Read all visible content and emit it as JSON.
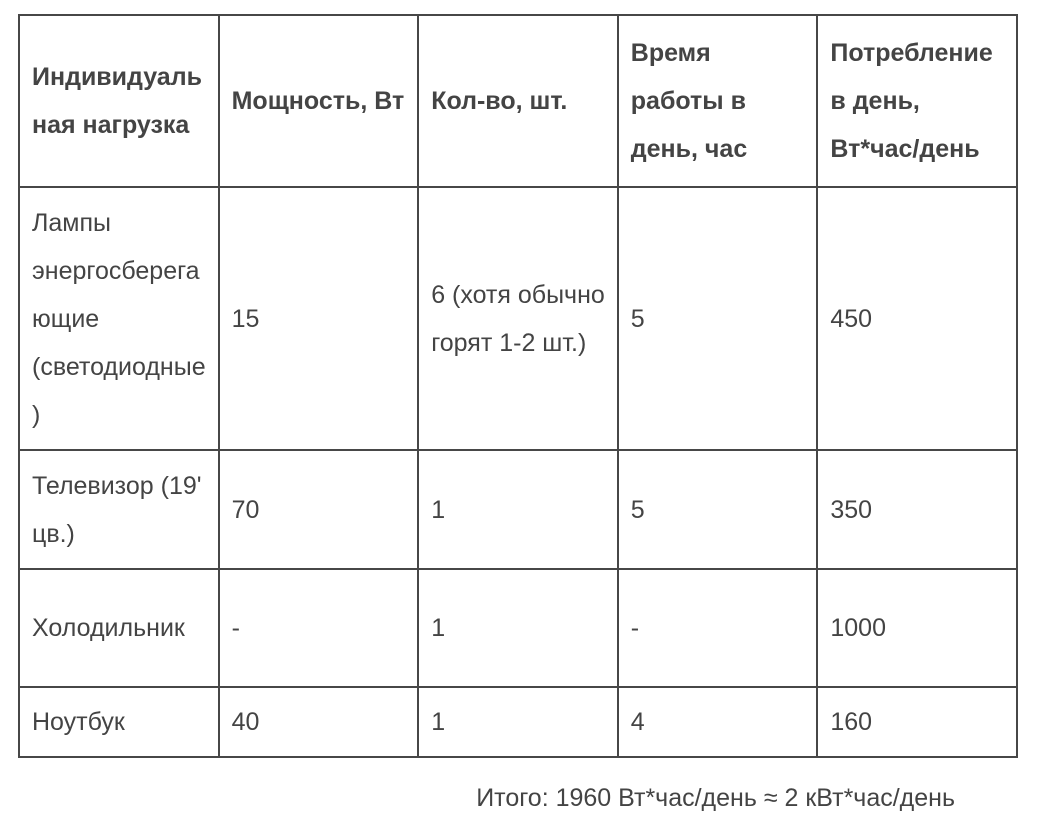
{
  "table": {
    "headers": [
      "Индивидуальная нагрузка",
      "Мощность, Вт",
      "Кол-во, шт.",
      "Время работы в день, час",
      "Потребление в день, Вт*час/день"
    ],
    "rows": [
      [
        "Лампы энергосберегающие (светодиодные)",
        "15",
        "6 (хотя обычно горят 1-2 шт.)",
        "5",
        "450"
      ],
      [
        "Телевизор (19' цв.)",
        "70",
        "1",
        "5",
        "350"
      ],
      [
        "Холодильник",
        "-",
        "1",
        "-",
        "1000"
      ],
      [
        "Ноутбук",
        "40",
        "1",
        "4",
        "160"
      ]
    ]
  },
  "total": "Итого: 1960 Вт*час/день ≈ 2 кВт*час/день"
}
